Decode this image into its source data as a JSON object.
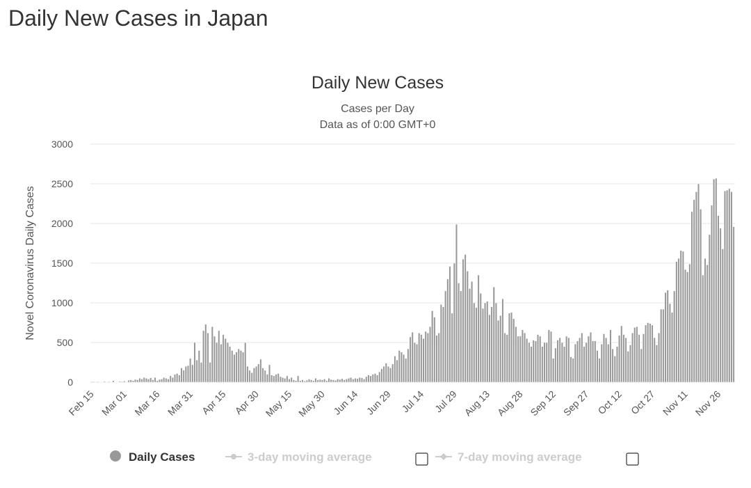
{
  "page_title": "Daily New Cases in Japan",
  "chart_data": {
    "type": "bar",
    "title": "Daily New Cases",
    "subtitle": [
      "Cases per Day",
      "Data as of 0:00 GMT+0"
    ],
    "xlabel": "",
    "ylabel": "Novel Coronavirus Daily Cases",
    "ylim": [
      0,
      3000
    ],
    "yticks": [
      0,
      500,
      1000,
      1500,
      2000,
      2500,
      3000
    ],
    "start_date": "Feb 15",
    "xtick_labels": [
      "Feb 15",
      "Mar 01",
      "Mar 16",
      "Mar 31",
      "Apr 15",
      "Apr 30",
      "May 15",
      "May 30",
      "Jun 14",
      "Jun 29",
      "Jul 14",
      "Jul 29",
      "Aug 13",
      "Aug 28",
      "Sep 12",
      "Sep 27",
      "Oct 12",
      "Oct 27",
      "Nov 11",
      "Nov 26"
    ],
    "grid": true,
    "legend_position": "bottom",
    "legend": [
      {
        "label": "Daily Cases",
        "color": "#999999",
        "active": true
      },
      {
        "label": "3-day moving average",
        "color": "#cccccc",
        "active": false
      },
      {
        "label": "7-day moving average",
        "color": "#cccccc",
        "active": false
      }
    ],
    "bar_color": "#999999",
    "series": [
      {
        "name": "Daily Cases",
        "values": [
          0,
          0,
          1,
          0,
          5,
          3,
          10,
          2,
          8,
          1,
          20,
          5,
          3,
          10,
          8,
          15,
          5,
          25,
          30,
          20,
          35,
          30,
          50,
          40,
          60,
          50,
          40,
          55,
          30,
          60,
          20,
          35,
          40,
          60,
          50,
          40,
          80,
          60,
          100,
          110,
          90,
          180,
          150,
          200,
          210,
          300,
          220,
          500,
          280,
          400,
          250,
          650,
          730,
          620,
          250,
          700,
          580,
          500,
          650,
          480,
          600,
          550,
          500,
          450,
          400,
          350,
          380,
          420,
          400,
          380,
          500,
          200,
          150,
          120,
          180,
          200,
          230,
          290,
          180,
          150,
          100,
          220,
          90,
          80,
          100,
          110,
          70,
          60,
          50,
          80,
          40,
          60,
          30,
          20,
          80,
          20,
          30,
          15,
          25,
          40,
          30,
          20,
          50,
          30,
          35,
          30,
          40,
          20,
          50,
          35,
          30,
          25,
          40,
          35,
          45,
          30,
          40,
          50,
          60,
          40,
          50,
          45,
          60,
          55,
          40,
          70,
          90,
          80,
          100,
          110,
          90,
          130,
          170,
          200,
          240,
          200,
          180,
          230,
          330,
          280,
          400,
          380,
          350,
          300,
          420,
          570,
          630,
          500,
          480,
          620,
          600,
          550,
          640,
          620,
          700,
          900,
          820,
          590,
          620,
          980,
          950,
          1150,
          1300,
          1460,
          870,
          1500,
          1990,
          1250,
          1150,
          1550,
          1610,
          1400,
          1180,
          1270,
          1000,
          940,
          1350,
          1120,
          930,
          1000,
          1020,
          850,
          950,
          1200,
          1000,
          780,
          840,
          1050,
          620,
          600,
          870,
          880,
          800,
          700,
          580,
          580,
          660,
          620,
          550,
          500,
          450,
          530,
          520,
          600,
          580,
          450,
          500,
          500,
          660,
          640,
          300,
          430,
          530,
          560,
          500,
          450,
          580,
          560,
          320,
          300,
          480,
          520,
          560,
          620,
          450,
          500,
          580,
          630,
          520,
          520,
          400,
          300,
          480,
          610,
          560,
          480,
          660,
          420,
          330,
          450,
          590,
          710,
          600,
          560,
          390,
          470,
          620,
          690,
          700,
          600,
          420,
          610,
          720,
          750,
          740,
          720,
          560,
          470,
          620,
          920,
          920,
          1130,
          1160,
          990,
          880,
          1150,
          1520,
          1560,
          1660,
          1650,
          1420,
          1390,
          1490,
          2150,
          2300,
          2400,
          2500,
          2180,
          1350,
          1560,
          1480,
          1860,
          2230,
          2560,
          2570,
          2100,
          1940,
          1680,
          2410,
          2420,
          2440,
          2400,
          1960
        ]
      }
    ]
  }
}
